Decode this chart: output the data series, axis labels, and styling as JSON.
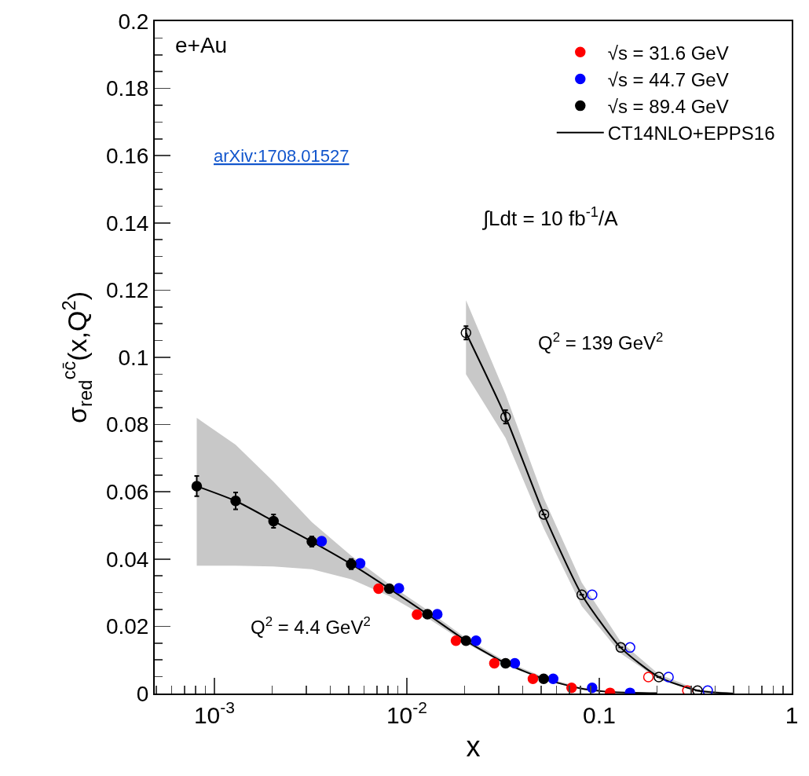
{
  "chart_data": {
    "type": "scatter",
    "xlabel": "x",
    "ylabel": "σ$_{red}$$^{cc̄}$(x,Q$^{2}$)",
    "log": "x",
    "grid": false,
    "legend": "top right",
    "marker": "circle",
    "xlim": [
      0.00049,
      1
    ],
    "xticks": [
      {
        "value": 0.001,
        "label": "10$^{-3}$"
      },
      {
        "value": 0.01,
        "label": "10$^{-2}$"
      },
      0.1,
      1
    ],
    "ylim": [
      0,
      0.2
    ],
    "yticks": [
      0,
      0.02,
      0.04,
      0.06,
      0.08,
      0.1,
      0.12,
      0.14,
      0.16,
      0.18,
      0.2
    ],
    "annotations": [
      "e+Au",
      "arXiv:1708.01527",
      "∫Ldt = 10 fb$^{-1}$/A",
      "Q$^{2}$ = 4.4 GeV$^{2}$",
      "Q$^{2}$ = 139 GeV$^{2}$"
    ],
    "series": [
      {
        "type": "line",
        "name": "CT14NLO+EPPS16",
        "color": "#000000",
        "marker": "none",
        "line_style": "solid",
        "x": [
          0.00081,
          0.00129,
          0.00203,
          0.00321,
          0.00514,
          0.00811,
          0.0128,
          0.0203,
          0.0326,
          0.0514,
          0.08,
          0.12,
          0.2
        ],
        "values": [
          0.0617,
          0.0573,
          0.0513,
          0.0452,
          0.0385,
          0.0312,
          0.0236,
          0.0157,
          0.009,
          0.0044,
          0.0015,
          0.0004,
          0.0001
        ],
        "lower": [
          0.038,
          0.038,
          0.0378,
          0.037,
          0.034,
          0.029,
          0.0225,
          0.015,
          0.0085,
          0.004,
          0.0012,
          0.0003,
          0
        ],
        "upper": [
          0.082,
          0.074,
          0.063,
          0.051,
          0.041,
          0.0325,
          0.0248,
          0.0165,
          0.0096,
          0.0049,
          0.0018,
          0.0006,
          0.0002
        ]
      },
      {
        "type": "line",
        "color": "#000000",
        "marker": "none",
        "line_style": "solid",
        "x": [
          0.0203,
          0.0326,
          0.0516,
          0.0811,
          0.129,
          0.204,
          0.324,
          0.5
        ],
        "values": [
          0.1073,
          0.0823,
          0.0533,
          0.0294,
          0.0137,
          0.0049,
          0.0009,
          0
        ],
        "lower": [
          0.095,
          0.076,
          0.049,
          0.026,
          0.012,
          0.0042,
          0.0006,
          0
        ],
        "upper": [
          0.117,
          0.089,
          0.058,
          0.033,
          0.0155,
          0.0057,
          0.0012,
          0.0001
        ]
      },
      {
        "name": "√s = 31.6 GeV",
        "color": "#ff0000",
        "x": [
          0.00713,
          0.0113,
          0.018,
          0.0285,
          0.0452,
          0.0718,
          0.1138
        ],
        "values": [
          0.0312,
          0.0235,
          0.0157,
          0.009,
          0.0044,
          0.0017,
          0.0002
        ]
      },
      {
        "name": "√s = 44.7 GeV",
        "color": "#0000ff",
        "x": [
          0.00361,
          0.00572,
          0.0091,
          0.0144,
          0.0229,
          0.0364,
          0.0576,
          0.0918,
          0.1445
        ],
        "values": [
          0.0453,
          0.0387,
          0.0313,
          0.0236,
          0.0157,
          0.009,
          0.0044,
          0.0017,
          0.0002
        ]
      },
      {
        "name": "√s = 89.4 GeV",
        "color": "#000000",
        "x": [
          0.00081,
          0.00129,
          0.00203,
          0.00321,
          0.00514,
          0.00811,
          0.0128,
          0.0203,
          0.0326,
          0.0514
        ],
        "values": [
          0.0617,
          0.0573,
          0.0513,
          0.0452,
          0.0385,
          0.0312,
          0.0236,
          0.0157,
          0.009,
          0.0044
        ],
        "errors": [
          0.003,
          0.0025,
          0.002,
          0.0015,
          0.0015,
          null,
          null,
          null,
          null,
          null
        ]
      },
      {
        "color": "#ff0000",
        "marker": "circle-open",
        "x": [
          0.18,
          0.287
        ],
        "values": [
          0.0049,
          0.0009
        ]
      },
      {
        "color": "#0000ff",
        "marker": "circle-open",
        "x": [
          0.0918,
          0.1445,
          0.229,
          0.366
        ],
        "values": [
          0.0294,
          0.0137,
          0.0049,
          0.0009
        ]
      },
      {
        "color": "#000000",
        "marker": "circle-open",
        "x": [
          0.0203,
          0.0326,
          0.0516,
          0.0811,
          0.1294,
          0.204,
          0.324
        ],
        "values": [
          0.1073,
          0.0823,
          0.0533,
          0.0294,
          0.0137,
          0.0049,
          0.0009
        ],
        "errors": [
          0.002,
          0.002,
          null,
          null,
          null,
          null,
          null
        ]
      }
    ]
  }
}
